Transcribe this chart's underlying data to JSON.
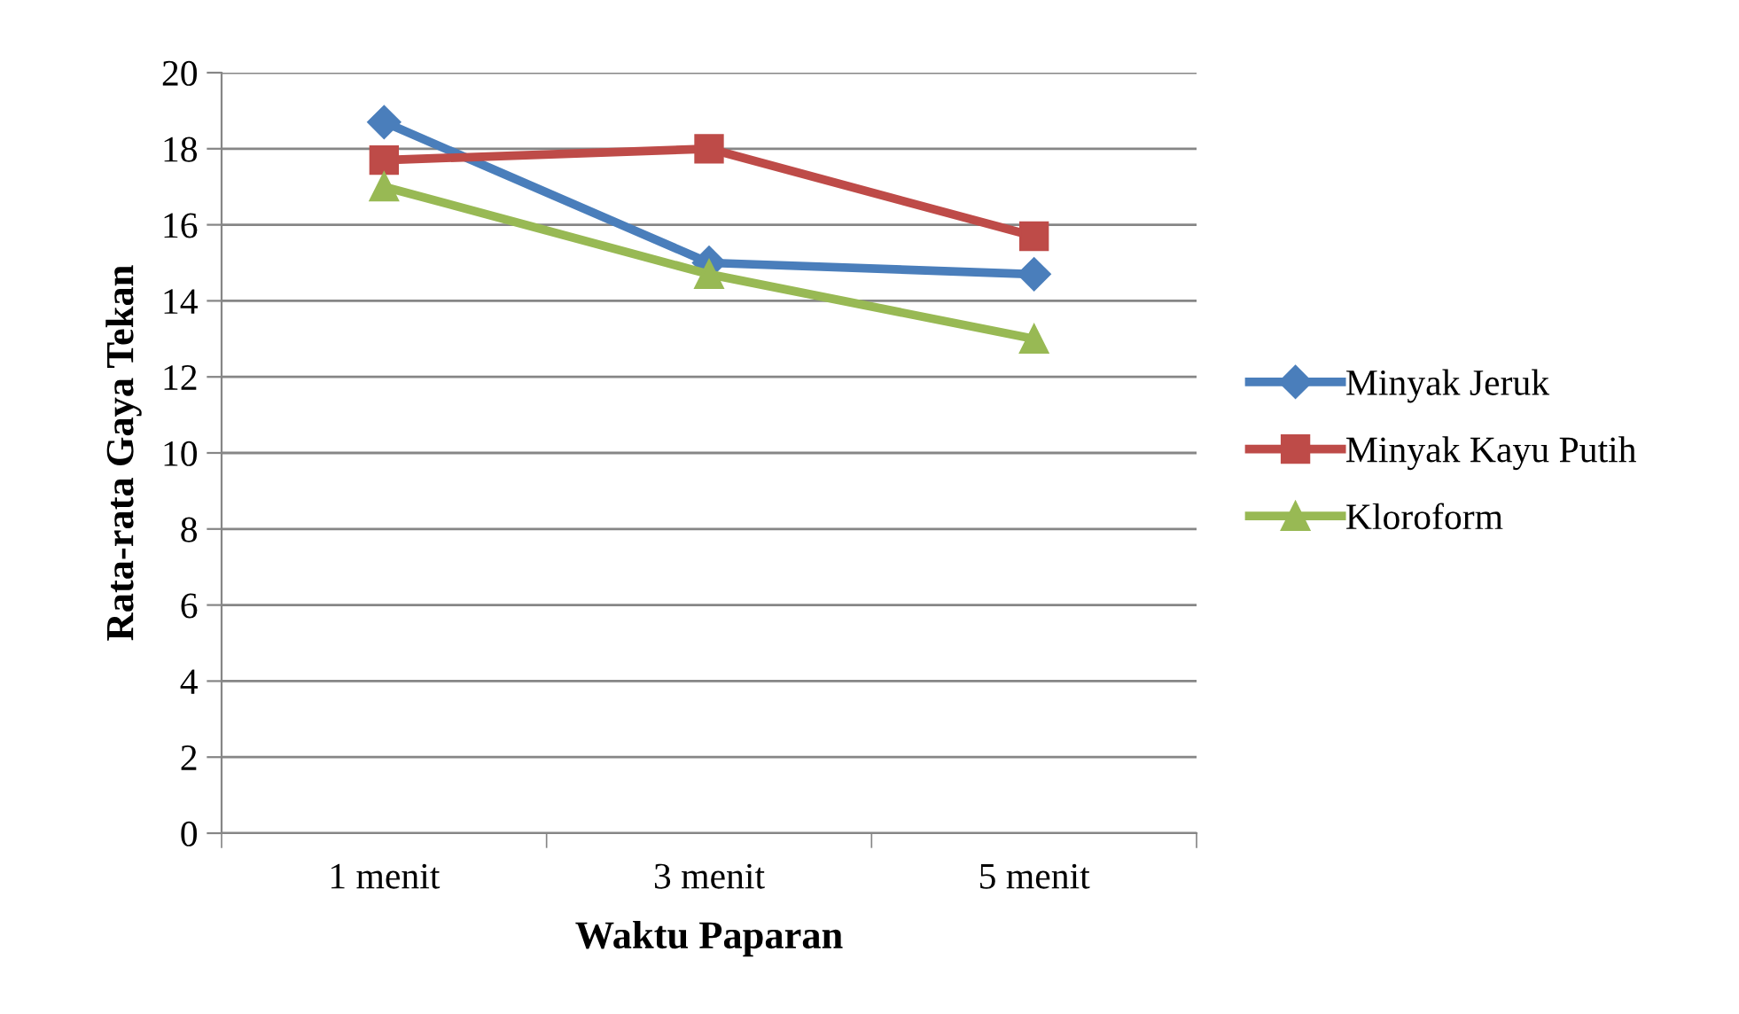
{
  "chart_data": {
    "type": "line",
    "xlabel": "Waktu Paparan",
    "ylabel": "Rata-rata Gaya Tekan",
    "categories": [
      "1 menit",
      "3 menit",
      "5 menit"
    ],
    "series": [
      {
        "name": "Minyak Jeruk",
        "color": "#4a7ebb",
        "marker": "diamond",
        "values": [
          18.7,
          15.0,
          14.7
        ]
      },
      {
        "name": "Minyak Kayu Putih",
        "color": "#be4b48",
        "marker": "square",
        "values": [
          17.7,
          18.0,
          15.7
        ]
      },
      {
        "name": "Kloroform",
        "color": "#98b954",
        "marker": "triangle",
        "values": [
          17.0,
          14.7,
          13.0
        ]
      }
    ],
    "ylim": [
      0,
      20
    ],
    "yticks": [
      0,
      2,
      4,
      6,
      8,
      10,
      12,
      14,
      16,
      18,
      20
    ],
    "grid": "y",
    "legend": "right",
    "line_style": "solid"
  }
}
